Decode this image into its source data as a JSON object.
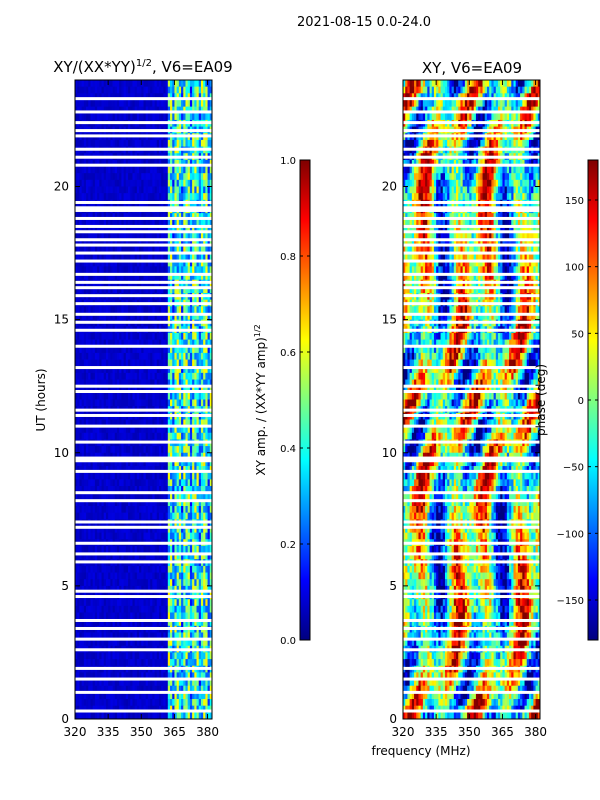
{
  "figure": {
    "suptitle": "2021-08-15 0.0-24.0",
    "xlabel": "frequency (MHz)"
  },
  "colors": {
    "gap": "#ffffff",
    "axis": "#000000",
    "jet": [
      "#00007f",
      "#0000ff",
      "#007fff",
      "#00ffff",
      "#7fff7f",
      "#ffff00",
      "#ff7f00",
      "#ff0000",
      "#7f0000"
    ]
  },
  "chart_data": [
    {
      "type": "heatmap",
      "title": "XY/(XX*YY)^1/2, V6=EA09",
      "title_main": "XY/(XX*YY)",
      "title_sup": "1/2",
      "title_tail": ", V6=EA09",
      "xlabel": "",
      "ylabel": "UT (hours)",
      "xlim": [
        320,
        382
      ],
      "ylim": [
        0,
        24
      ],
      "x_ticks": [
        320,
        335,
        350,
        365,
        380
      ],
      "y_ticks": [
        0,
        5,
        10,
        15,
        20
      ],
      "colorbar": {
        "label": "XY amp. / (XX*YY amp)^1/2",
        "label_main": "XY amp. / (XX*YY amp)",
        "label_sup": "1/2",
        "range": [
          0.0,
          1.0
        ],
        "ticks": [
          "0.0",
          "0.2",
          "0.4",
          "0.6",
          "0.8",
          "1.0"
        ],
        "tick_values": [
          0.0,
          0.2,
          0.4,
          0.6,
          0.8,
          1.0
        ]
      },
      "background_value": 0.05,
      "bright_band_mhz": [
        362,
        382
      ],
      "band_value_range": [
        0.2,
        0.65
      ]
    },
    {
      "type": "heatmap",
      "title": "XY, V6=EA09",
      "xlabel": "",
      "ylabel": "phase (deg)",
      "xlim": [
        320,
        382
      ],
      "ylim": [
        0,
        24
      ],
      "x_ticks": [
        320,
        335,
        350,
        365,
        380
      ],
      "y_ticks": [
        0,
        5,
        10,
        15,
        20
      ],
      "colorbar": {
        "label": "phase (deg)",
        "range": [
          -180,
          180
        ],
        "ticks": [
          "150",
          "100",
          "50",
          "0",
          "−50",
          "−100",
          "−150"
        ],
        "tick_values": [
          150,
          100,
          50,
          0,
          -50,
          -100,
          -150
        ]
      },
      "value_range": [
        -180,
        180
      ]
    }
  ],
  "x_tick_labels": [
    "320",
    "335",
    "350",
    "365",
    "380"
  ],
  "y_tick_labels": [
    "0",
    "5",
    "10",
    "15",
    "20"
  ],
  "flagged_ut_hours": [
    0.3,
    1.0,
    1.5,
    1.9,
    2.6,
    3.0,
    3.4,
    3.7,
    4.6,
    4.8,
    5.9,
    6.2,
    6.6,
    7.2,
    7.4,
    8.2,
    8.5,
    9.3,
    9.7,
    9.8,
    10.4,
    11.0,
    11.4,
    11.6,
    12.3,
    12.5,
    13.2,
    14.0,
    14.6,
    14.9,
    15.2,
    15.6,
    15.9,
    16.2,
    16.4,
    16.7,
    17.2,
    17.5,
    17.8,
    18.0,
    18.3,
    18.5,
    18.8,
    19.1,
    19.2,
    19.4,
    20.8,
    21.1,
    21.4,
    21.9,
    22.1,
    22.4,
    22.8,
    23.3
  ]
}
